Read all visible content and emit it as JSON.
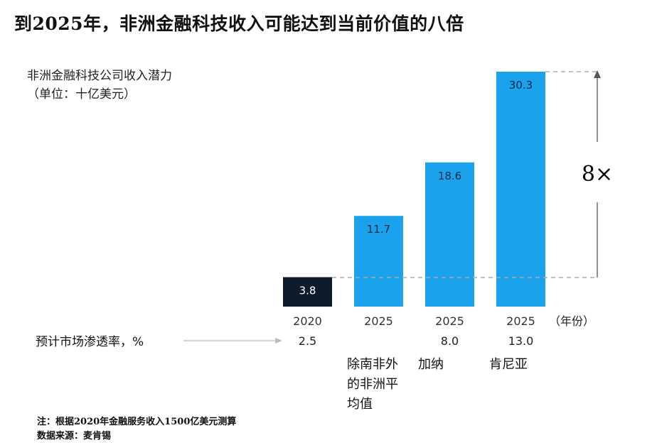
{
  "title": "到2025年，非洲金融科技收入可能达到当前价值的八倍",
  "y_label_line1": "非洲金融科技公司收入潜力",
  "y_label_line2": "（单位：十亿美元）",
  "x_unit_label": "（年份）",
  "multiplier_label": "8×",
  "penetration_label": "预计市场渗透率，%",
  "colors": {
    "dark": "#0d1b2a",
    "blue": "#1aa3ec",
    "dashed": "#aaaaaa",
    "arrow": "#555555"
  },
  "chart_data": {
    "type": "bar",
    "categories": [
      "2020",
      "2025",
      "2025",
      "2025"
    ],
    "values": [
      3.8,
      11.7,
      18.6,
      30.3
    ],
    "value_labels": [
      "3.8",
      "11.7",
      "18.6",
      "30.3"
    ],
    "penetration": [
      "2.5",
      "",
      "8.0",
      "13.0"
    ],
    "regions": [
      [],
      [
        "除南非外",
        "的非洲平",
        "均值"
      ],
      [
        "加纳"
      ],
      [
        "肯尼亚"
      ]
    ],
    "ylim": [
      0,
      30.3
    ],
    "annotation": "8×"
  },
  "notes": {
    "line1": "注：根据2020年金融服务收入1500亿美元测算",
    "line2": "数据来源：麦肯锡"
  }
}
